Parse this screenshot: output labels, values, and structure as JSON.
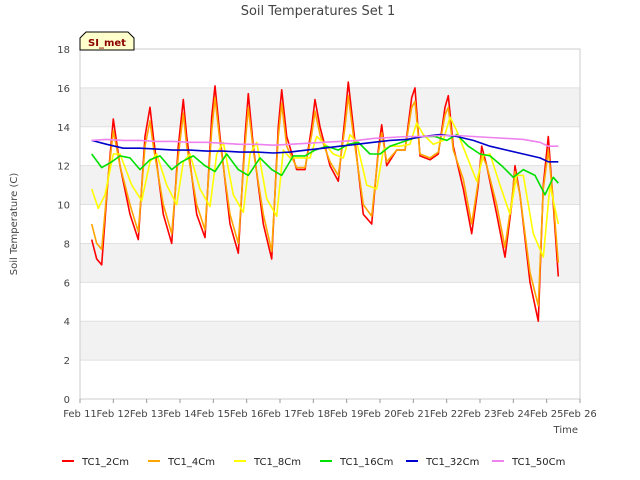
{
  "chart_data": {
    "type": "line",
    "title": "Soil Temperatures Set 1",
    "xlabel": "Time",
    "ylabel": "Soil Temperature (C)",
    "badge": "SI_met",
    "ylim": [
      0,
      18
    ],
    "yticks": [
      0,
      2,
      4,
      6,
      8,
      10,
      12,
      14,
      16,
      18
    ],
    "xlim": [
      11,
      26
    ],
    "xtick_labels": [
      "Feb 11",
      "Feb 12",
      "Feb 13",
      "Feb 14",
      "Feb 15",
      "Feb 16",
      "Feb 17",
      "Feb 18",
      "Feb 19",
      "Feb 20",
      "Feb 21",
      "Feb 22",
      "Feb 23",
      "Feb 24",
      "Feb 25",
      "Feb 26"
    ],
    "grid": "horizontal bands",
    "legend_position": "bottom",
    "series": [
      {
        "name": "TC1_2Cm",
        "color": "#ff0000",
        "x": [
          11.35,
          11.5,
          11.65,
          11.85,
          12.0,
          12.2,
          12.5,
          12.75,
          12.95,
          13.1,
          13.2,
          13.5,
          13.75,
          13.95,
          14.1,
          14.2,
          14.5,
          14.75,
          14.95,
          15.05,
          15.2,
          15.5,
          15.75,
          15.95,
          16.05,
          16.2,
          16.5,
          16.75,
          16.95,
          17.05,
          17.2,
          17.5,
          17.75,
          17.95,
          18.05,
          18.2,
          18.5,
          18.75,
          18.95,
          19.05,
          19.2,
          19.5,
          19.75,
          19.95,
          20.05,
          20.2,
          20.5,
          20.75,
          20.95,
          21.05,
          21.2,
          21.5,
          21.75,
          21.95,
          22.05,
          22.2,
          22.5,
          22.75,
          22.95,
          23.05,
          23.2,
          23.5,
          23.75,
          23.95,
          24.05,
          24.2,
          24.5,
          24.75,
          24.9,
          25.05,
          25.2,
          25.35
        ],
        "y": [
          8.2,
          7.2,
          6.9,
          11.5,
          14.4,
          12.0,
          9.5,
          8.2,
          13.5,
          15.0,
          13.5,
          9.5,
          8.0,
          13.0,
          15.4,
          13.5,
          9.5,
          8.3,
          14.5,
          16.1,
          13.5,
          9.0,
          7.5,
          13.5,
          15.7,
          13.0,
          9.0,
          7.2,
          14.0,
          15.9,
          13.5,
          11.8,
          11.8,
          14.0,
          15.4,
          14.0,
          12.0,
          11.2,
          14.5,
          16.3,
          14.0,
          9.5,
          9.0,
          12.8,
          14.1,
          12.0,
          12.8,
          12.8,
          15.5,
          16.0,
          12.5,
          12.3,
          12.6,
          15.0,
          15.6,
          13.0,
          10.8,
          8.5,
          11.0,
          13.0,
          12.0,
          9.5,
          7.3,
          10.0,
          12.0,
          10.5,
          6.0,
          4.0,
          11.0,
          13.5,
          10.0,
          6.3
        ]
      },
      {
        "name": "TC1_4Cm",
        "color": "#ffa500",
        "x": [
          11.35,
          11.5,
          11.65,
          11.85,
          12.0,
          12.2,
          12.5,
          12.75,
          12.95,
          13.1,
          13.2,
          13.5,
          13.75,
          13.95,
          14.1,
          14.2,
          14.5,
          14.75,
          14.95,
          15.05,
          15.2,
          15.5,
          15.75,
          15.95,
          16.05,
          16.2,
          16.5,
          16.75,
          16.95,
          17.05,
          17.2,
          17.5,
          17.75,
          17.95,
          18.05,
          18.2,
          18.5,
          18.75,
          18.95,
          19.05,
          19.2,
          19.5,
          19.75,
          19.95,
          20.05,
          20.2,
          20.5,
          20.75,
          20.95,
          21.05,
          21.2,
          21.5,
          21.75,
          21.95,
          22.05,
          22.2,
          22.5,
          22.75,
          22.95,
          23.05,
          23.2,
          23.5,
          23.75,
          23.95,
          24.05,
          24.2,
          24.5,
          24.75,
          24.9,
          25.05,
          25.2,
          25.35
        ],
        "y": [
          9.0,
          8.0,
          7.7,
          11.5,
          13.8,
          12.0,
          10.0,
          8.6,
          13.0,
          14.3,
          13.0,
          10.0,
          8.5,
          12.5,
          14.7,
          13.0,
          10.0,
          8.7,
          13.8,
          15.5,
          13.2,
          9.5,
          8.0,
          13.0,
          15.0,
          12.8,
          9.5,
          7.6,
          13.5,
          15.2,
          13.0,
          11.9,
          11.9,
          13.6,
          14.8,
          13.6,
          12.2,
          11.5,
          14.0,
          15.6,
          13.6,
          10.0,
          9.4,
          12.6,
          13.7,
          12.2,
          12.8,
          12.8,
          15.0,
          15.3,
          12.6,
          12.4,
          12.7,
          14.6,
          15.0,
          12.8,
          11.3,
          9.0,
          11.2,
          12.6,
          12.0,
          10.0,
          7.8,
          10.2,
          11.7,
          10.5,
          6.5,
          4.8,
          10.8,
          12.8,
          10.2,
          7.0
        ]
      },
      {
        "name": "TC1_8Cm",
        "color": "#ffff00",
        "x": [
          11.35,
          11.55,
          11.75,
          12.0,
          12.2,
          12.55,
          12.85,
          13.1,
          13.3,
          13.6,
          13.9,
          14.1,
          14.3,
          14.6,
          14.9,
          15.1,
          15.3,
          15.6,
          15.9,
          16.1,
          16.3,
          16.6,
          16.9,
          17.1,
          17.3,
          17.6,
          17.9,
          18.1,
          18.3,
          18.6,
          18.9,
          19.1,
          19.3,
          19.6,
          19.9,
          20.1,
          20.3,
          20.6,
          20.9,
          21.1,
          21.3,
          21.6,
          21.9,
          22.1,
          22.3,
          22.6,
          22.9,
          23.1,
          23.3,
          23.6,
          23.9,
          24.1,
          24.3,
          24.6,
          24.9,
          25.1,
          25.35
        ],
        "y": [
          10.8,
          9.8,
          10.5,
          12.6,
          12.6,
          11.0,
          10.2,
          12.2,
          12.6,
          11.0,
          10.0,
          12.2,
          12.6,
          10.8,
          9.9,
          12.6,
          13.2,
          10.5,
          9.6,
          12.6,
          13.2,
          10.3,
          9.4,
          12.8,
          12.4,
          12.4,
          12.4,
          13.5,
          13.2,
          12.6,
          12.4,
          13.6,
          13.2,
          11.0,
          10.8,
          12.8,
          13.0,
          13.0,
          13.1,
          14.2,
          13.6,
          13.1,
          13.3,
          14.5,
          13.8,
          12.5,
          11.2,
          12.5,
          12.6,
          11.0,
          9.5,
          11.5,
          11.5,
          8.5,
          7.3,
          11.0,
          9.0
        ]
      },
      {
        "name": "TC1_16Cm",
        "color": "#00e000",
        "x": [
          11.35,
          11.65,
          11.95,
          12.2,
          12.5,
          12.8,
          13.1,
          13.4,
          13.75,
          14.05,
          14.4,
          14.75,
          15.05,
          15.4,
          15.75,
          16.05,
          16.4,
          16.75,
          17.05,
          17.4,
          17.75,
          18.05,
          18.4,
          18.75,
          19.05,
          19.35,
          19.7,
          20.0,
          20.3,
          20.65,
          21.0,
          21.3,
          21.65,
          22.0,
          22.3,
          22.65,
          23.0,
          23.3,
          23.65,
          24.0,
          24.3,
          24.65,
          24.95,
          25.2,
          25.35
        ],
        "y": [
          12.6,
          11.9,
          12.2,
          12.5,
          12.4,
          11.8,
          12.3,
          12.5,
          11.8,
          12.2,
          12.5,
          12.0,
          11.7,
          12.6,
          11.8,
          11.5,
          12.4,
          11.8,
          11.5,
          12.5,
          12.5,
          12.8,
          13.0,
          12.8,
          13.1,
          13.2,
          12.6,
          12.6,
          13.0,
          13.2,
          13.4,
          13.5,
          13.5,
          13.3,
          13.6,
          13.0,
          12.6,
          12.5,
          12.0,
          11.4,
          11.8,
          11.5,
          10.5,
          11.4,
          11.1
        ]
      },
      {
        "name": "TC1_32Cm",
        "color": "#0000cc",
        "x": [
          11.35,
          11.8,
          12.3,
          12.8,
          13.3,
          13.8,
          14.3,
          14.8,
          15.3,
          15.8,
          16.3,
          16.8,
          17.3,
          17.8,
          18.3,
          18.8,
          19.3,
          19.8,
          20.3,
          20.8,
          21.3,
          21.8,
          22.3,
          22.8,
          23.3,
          23.8,
          24.3,
          24.8,
          25.05,
          25.35
        ],
        "y": [
          13.3,
          13.1,
          12.9,
          12.9,
          12.85,
          12.8,
          12.8,
          12.75,
          12.75,
          12.7,
          12.7,
          12.65,
          12.7,
          12.8,
          12.9,
          13.0,
          13.1,
          13.2,
          13.3,
          13.35,
          13.5,
          13.6,
          13.5,
          13.3,
          13.0,
          12.8,
          12.6,
          12.4,
          12.2,
          12.2
        ]
      },
      {
        "name": "TC1_50Cm",
        "color": "#ee82ee",
        "x": [
          11.35,
          11.8,
          12.3,
          12.8,
          13.3,
          13.8,
          14.3,
          14.8,
          15.3,
          15.8,
          16.3,
          16.8,
          17.3,
          17.8,
          18.3,
          18.8,
          19.3,
          19.8,
          20.3,
          20.8,
          21.3,
          21.8,
          22.3,
          22.8,
          23.3,
          23.8,
          24.3,
          24.8,
          25.05,
          25.35
        ],
        "y": [
          13.3,
          13.35,
          13.3,
          13.3,
          13.25,
          13.25,
          13.2,
          13.2,
          13.15,
          13.1,
          13.1,
          13.05,
          13.1,
          13.15,
          13.2,
          13.25,
          13.3,
          13.4,
          13.45,
          13.5,
          13.5,
          13.55,
          13.55,
          13.5,
          13.45,
          13.4,
          13.35,
          13.2,
          13.0,
          13.0
        ]
      }
    ]
  }
}
